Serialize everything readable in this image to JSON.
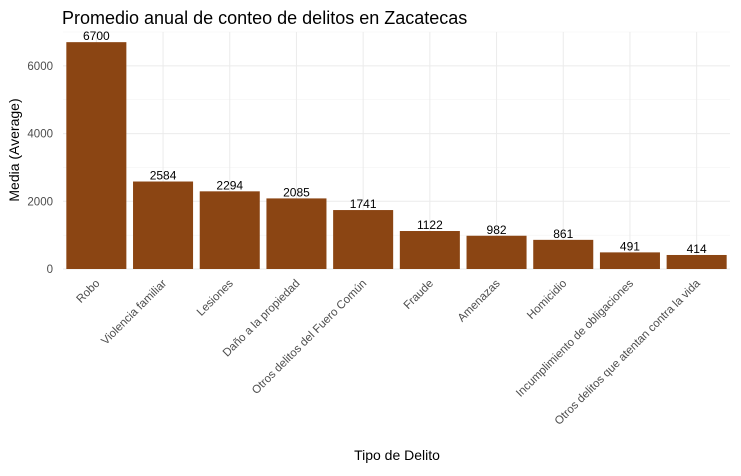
{
  "chart_data": {
    "type": "bar",
    "title": "Promedio anual de conteo de delitos en Zacatecas",
    "xlabel": "Tipo de Delito",
    "ylabel": "Media (Average)",
    "categories": [
      "Robo",
      "Violencia familiar",
      "Lesiones",
      "Daño a la propiedad",
      "Otros delitos del Fuero Común",
      "Fraude",
      "Amenazas",
      "Homicidio",
      "Incumplimiento de obligaciones",
      "Otros delitos que atentan contra la vida"
    ],
    "values": [
      6700,
      2584,
      2294,
      2085,
      1741,
      1122,
      982,
      861,
      491,
      414
    ],
    "data_labels": [
      "6700",
      "2584",
      "2294",
      "2085",
      "1741",
      "1122",
      "982",
      "861",
      "491",
      "414"
    ],
    "ylim": [
      0,
      7000
    ],
    "yticks": [
      0,
      2000,
      4000,
      6000
    ],
    "ytick_labels": [
      "0",
      "2000",
      "4000",
      "6000"
    ],
    "grid": true,
    "bar_color": "#8B4513",
    "background": "#ffffff"
  }
}
